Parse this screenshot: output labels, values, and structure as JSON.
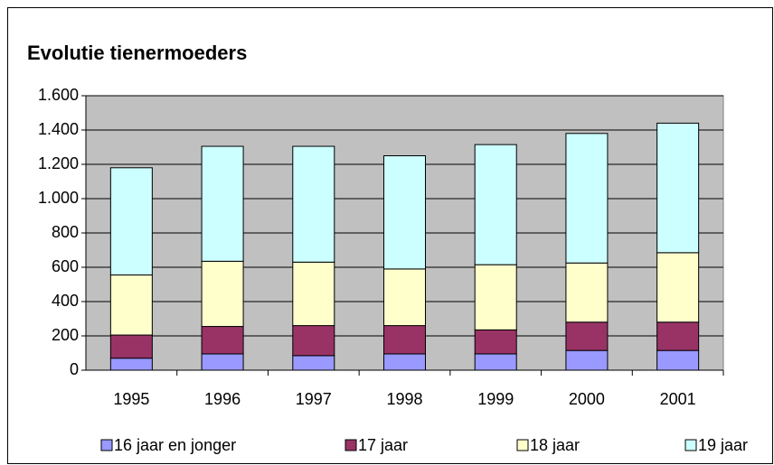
{
  "chart_data": {
    "type": "stacked_bar",
    "title": "Evolutie tienermoeders",
    "categories": [
      "1995",
      "1996",
      "1997",
      "1998",
      "1999",
      "2000",
      "2001"
    ],
    "series": [
      {
        "name": "16 jaar en jonger",
        "color": "#9999ff",
        "values": [
          70,
          95,
          85,
          95,
          95,
          115,
          115
        ]
      },
      {
        "name": "17 jaar",
        "color": "#993366",
        "values": [
          135,
          160,
          175,
          165,
          140,
          165,
          165
        ]
      },
      {
        "name": "18 jaar",
        "color": "#ffffcc",
        "values": [
          350,
          380,
          370,
          330,
          380,
          345,
          405
        ]
      },
      {
        "name": "19 jaar",
        "color": "#ccffff",
        "values": [
          625,
          670,
          675,
          660,
          700,
          755,
          755
        ]
      }
    ],
    "ylim": [
      0,
      1600
    ],
    "yticks": [
      0,
      200,
      400,
      600,
      800,
      {
        "value": 1000,
        "label": "1.000"
      },
      {
        "value": 1200,
        "label": "1.200"
      },
      {
        "value": 1400,
        "label": "1.400"
      },
      {
        "value": 1600,
        "label": "1.600"
      }
    ],
    "grid": true,
    "plot_background": "#c0c0c0",
    "legend": "bottom"
  }
}
